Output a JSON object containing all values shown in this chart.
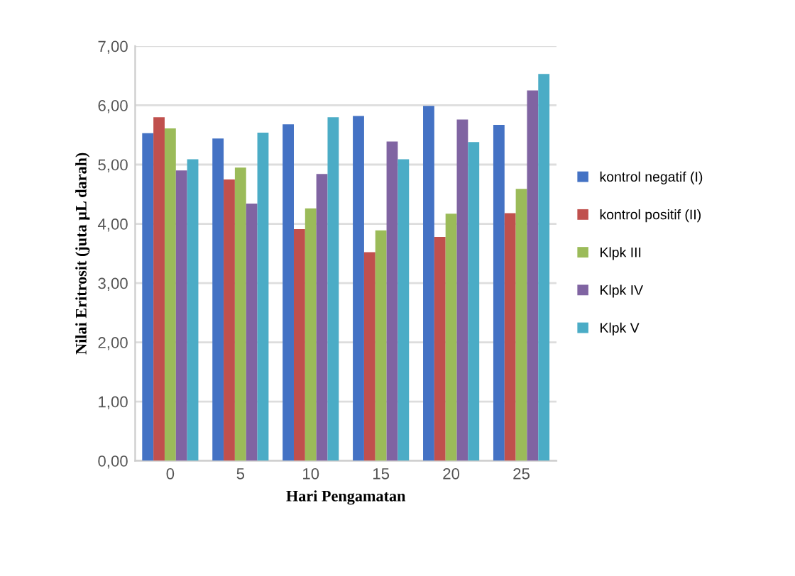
{
  "chart_data": {
    "type": "bar",
    "xlabel": "Hari Pengamatan",
    "ylabel": "Nilai Eritrosit (juta µL darah)",
    "categories": [
      "0",
      "5",
      "10",
      "15",
      "20",
      "25"
    ],
    "series": [
      {
        "name": "kontrol negatif (I)",
        "color": "#4472c4",
        "values": [
          5.53,
          5.44,
          5.68,
          5.82,
          5.99,
          5.67
        ]
      },
      {
        "name": "kontrol positif (II)",
        "color": "#c0504d",
        "values": [
          5.8,
          4.75,
          3.91,
          3.52,
          3.78,
          4.18
        ]
      },
      {
        "name": "Klpk III",
        "color": "#9bbb59",
        "values": [
          5.61,
          4.95,
          4.26,
          3.89,
          4.17,
          4.59
        ]
      },
      {
        "name": "Klpk IV",
        "color": "#8064a2",
        "values": [
          4.9,
          4.34,
          4.84,
          5.39,
          5.76,
          6.25
        ]
      },
      {
        "name": "Klpk V",
        "color": "#4bacc6",
        "values": [
          5.09,
          5.54,
          5.8,
          5.09,
          5.38,
          6.53
        ]
      }
    ],
    "ylim": [
      0,
      7
    ],
    "yticks": [
      {
        "value": 0,
        "label": "0,00"
      },
      {
        "value": 1,
        "label": "1,00"
      },
      {
        "value": 2,
        "label": "2,00"
      },
      {
        "value": 3,
        "label": "3,00"
      },
      {
        "value": 4,
        "label": "4,00"
      },
      {
        "value": 5,
        "label": "5,00"
      },
      {
        "value": 6,
        "label": "6,00"
      },
      {
        "value": 7,
        "label": "7,00"
      }
    ],
    "grid": "y",
    "legend": "right"
  }
}
